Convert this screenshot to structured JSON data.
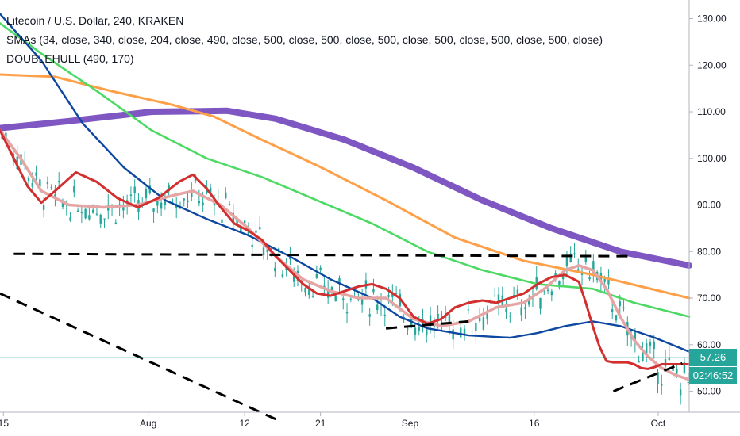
{
  "legend": {
    "title": "Litecoin / U.S. Dollar, 240, KRAKEN",
    "smas": "SMAs (34, close, 340, close, 204, close, 490, close, 500, close, 500, close, 500, close, 500, close, 500, close, 500, close)",
    "hull": "DOUBLEHULL (490, 170)"
  },
  "price_badge": {
    "value": "57.26",
    "color": "#26a69a"
  },
  "timer_badge": {
    "value": "02:46:52",
    "color": "#26a69a"
  },
  "chart_data": {
    "type": "line",
    "y_ticks": [
      "130.00",
      "120.00",
      "110.00",
      "100.00",
      "90.00",
      "80.00",
      "70.00",
      "60.00",
      "50.00"
    ],
    "y_tick_values": [
      130,
      120,
      110,
      100,
      90,
      80,
      70,
      60,
      50
    ],
    "x_ticks": [
      "15",
      "Aug",
      "12",
      "21",
      "Sep",
      "16",
      "Oct"
    ],
    "x_tick_values": [
      0.5,
      21.5,
      35.5,
      46.5,
      59.5,
      77.5,
      95.5
    ],
    "x_range": [
      0,
      100
    ],
    "ylim": [
      45.5,
      134
    ],
    "grid": false,
    "current_price": 57.26,
    "colors": {
      "sma_dark_blue": "#0d47a1",
      "sma_green": "#4cd964",
      "sma_orange": "#ffa048",
      "sma_purple": "#7e57c2",
      "hull_red": "#d32f2f",
      "hull_pink": "#e5a5a5",
      "candles": "#26a69a",
      "trendlines": "#000000"
    },
    "series": [
      {
        "key": "sma_purple",
        "x": [
          0,
          10,
          22,
          33,
          40,
          50,
          60,
          70,
          80,
          90,
          100
        ],
        "y": [
          106.5,
          108,
          110,
          110.2,
          108.5,
          104,
          98,
          91,
          85,
          80,
          77
        ]
      },
      {
        "key": "sma_orange",
        "x": [
          0,
          8,
          16,
          25,
          31,
          38,
          46,
          56,
          66,
          76,
          86,
          100
        ],
        "y": [
          118,
          117.5,
          114.5,
          111.5,
          109,
          104,
          98.5,
          91,
          83,
          78,
          75,
          70
        ]
      },
      {
        "key": "sma_green",
        "x": [
          0,
          6,
          14,
          22,
          30,
          38,
          46,
          54,
          62,
          70,
          78,
          86,
          92,
          100
        ],
        "y": [
          129,
          122.5,
          114.5,
          106,
          100,
          96,
          91,
          86,
          80,
          76,
          73,
          72,
          69,
          66
        ]
      },
      {
        "key": "sma_dark_blue",
        "x": [
          0,
          6,
          12,
          18,
          24,
          30,
          36,
          42,
          48,
          54,
          58,
          62,
          68,
          74,
          78,
          82,
          86,
          90,
          95,
          100
        ],
        "y": [
          131,
          121,
          107.5,
          98,
          91,
          87,
          83.5,
          79,
          74,
          70,
          66,
          63.5,
          62,
          61.5,
          62.5,
          64,
          65,
          64,
          61.5,
          58.5
        ]
      },
      {
        "key": "hull_pink",
        "x": [
          0,
          3,
          6,
          10,
          15,
          20,
          25,
          28,
          32,
          36,
          40,
          44,
          48,
          52,
          56,
          60,
          64,
          68,
          72,
          76,
          79,
          82,
          84,
          86,
          88,
          90,
          92,
          94,
          96,
          98,
          100
        ],
        "y": [
          106,
          100,
          93,
          90,
          89.5,
          90,
          92,
          93,
          90,
          85,
          79,
          74,
          71.5,
          70,
          70,
          65.5,
          64,
          65,
          68,
          69,
          72,
          76,
          77,
          76,
          72,
          66,
          61,
          57.5,
          55,
          53.5,
          52.5
        ]
      },
      {
        "key": "hull_red",
        "x": [
          0,
          2,
          4,
          6,
          8,
          11,
          14,
          17,
          20,
          23,
          26,
          28,
          30,
          32,
          34,
          36,
          38,
          40,
          42,
          44,
          46,
          48,
          50,
          52,
          54,
          56,
          58,
          60,
          62,
          64,
          66,
          68,
          70,
          72,
          74,
          76,
          78,
          80,
          82,
          84,
          85,
          86,
          87,
          88,
          89,
          90,
          91,
          92,
          93,
          94,
          95,
          96,
          97,
          98,
          99,
          100
        ],
        "y": [
          106,
          100,
          94,
          90.5,
          93,
          97,
          95,
          91.5,
          89.5,
          91.5,
          95,
          96.5,
          93.5,
          89.5,
          86,
          84.5,
          82.5,
          79,
          76,
          73,
          71,
          70.5,
          71.5,
          72.5,
          73,
          72,
          70,
          66,
          64.5,
          65.5,
          68,
          69,
          69.5,
          69,
          70,
          71,
          73,
          74.5,
          75,
          73.5,
          69,
          64,
          59.5,
          56.5,
          56.2,
          56.2,
          56.2,
          55.8,
          55,
          54.8,
          55.2,
          55.8,
          55.8,
          55.8,
          55.8,
          55.8
        ]
      },
      {
        "key": "trendlines",
        "style": "dash",
        "x": [
          2,
          92
        ],
        "y": [
          79.5,
          79
        ]
      },
      {
        "key": "trendlines",
        "style": "dash",
        "x": [
          0,
          40
        ],
        "y": [
          71,
          44
        ]
      },
      {
        "key": "trendlines",
        "style": "dash",
        "x": [
          56,
          68
        ],
        "y": [
          63.5,
          65
        ]
      },
      {
        "key": "trendlines",
        "style": "dash",
        "x": [
          89,
          99
        ],
        "y": [
          50,
          56
        ]
      }
    ]
  }
}
